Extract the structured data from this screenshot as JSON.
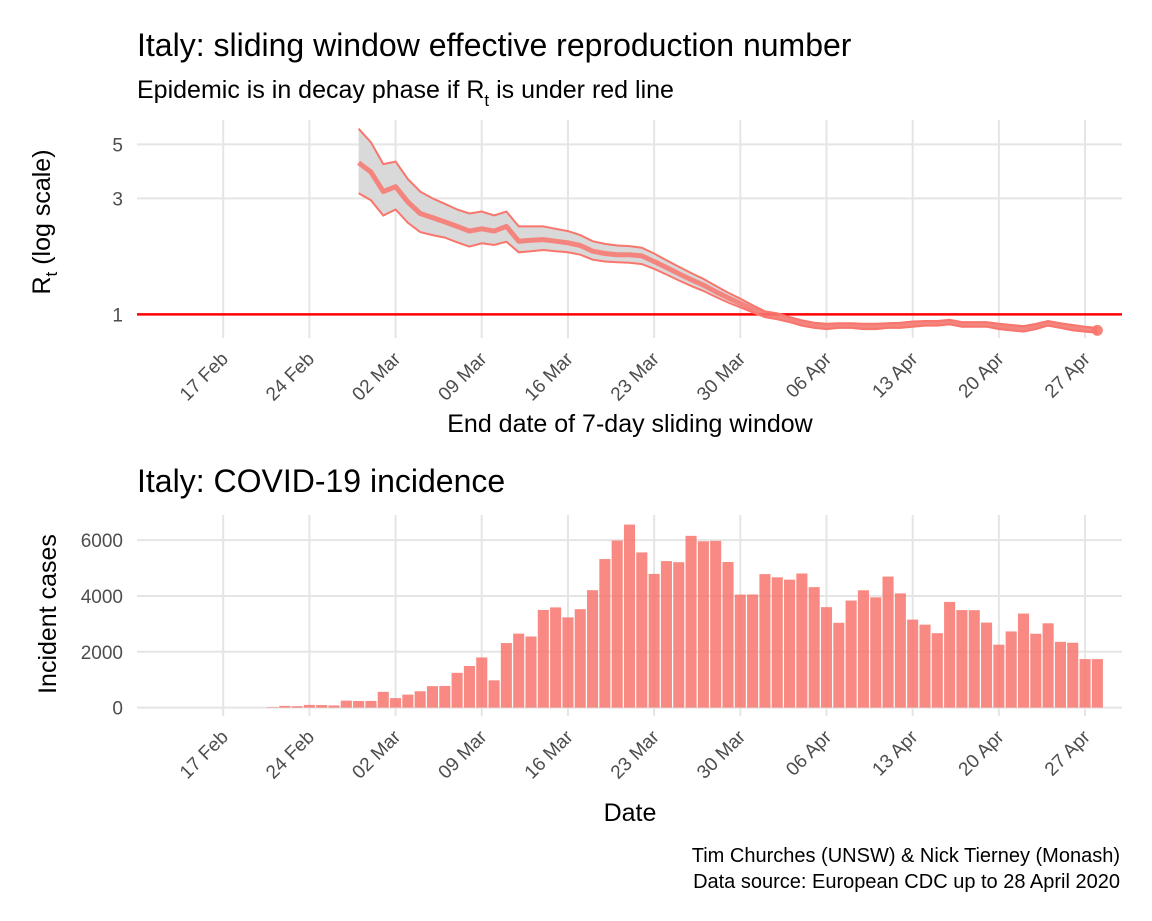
{
  "chart_data": [
    {
      "type": "line",
      "title": "Italy: sliding window effective reproduction number",
      "subtitle": {
        "prefix": "Epidemic is in decay phase if R",
        "subscript": "t",
        "suffix": " is under red line"
      },
      "xlabel": "End date of 7-day sliding window",
      "ylabel": {
        "main": "R",
        "subscript": "t",
        "suffix": " (log scale)"
      },
      "y_scale": "log",
      "y_ticks": [
        1,
        3,
        5
      ],
      "ylim": [
        0.8,
        6.3
      ],
      "x_ticks": [
        {
          "date": "2020-02-17",
          "label": "17 Feb"
        },
        {
          "date": "2020-02-24",
          "label": "24 Feb"
        },
        {
          "date": "2020-03-02",
          "label": "02 Mar"
        },
        {
          "date": "2020-03-09",
          "label": "09 Mar"
        },
        {
          "date": "2020-03-16",
          "label": "16 Mar"
        },
        {
          "date": "2020-03-23",
          "label": "23 Mar"
        },
        {
          "date": "2020-03-30",
          "label": "30 Mar"
        },
        {
          "date": "2020-04-06",
          "label": "06 Apr"
        },
        {
          "date": "2020-04-13",
          "label": "13 Apr"
        },
        {
          "date": "2020-04-20",
          "label": "20 Apr"
        },
        {
          "date": "2020-04-27",
          "label": "27 Apr"
        }
      ],
      "xlim": [
        "2020-02-10",
        "2020-04-30"
      ],
      "reference_line": {
        "y": 1,
        "color": "#ff0000"
      },
      "grid": true,
      "colors": {
        "line": "#f8766d",
        "ribbon": "#d9d9d9"
      },
      "series": [
        {
          "x": [
            "2020-02-28",
            "2020-02-29",
            "2020-03-01",
            "2020-03-02",
            "2020-03-03",
            "2020-03-04",
            "2020-03-05",
            "2020-03-06",
            "2020-03-07",
            "2020-03-08",
            "2020-03-09",
            "2020-03-10",
            "2020-03-11",
            "2020-03-12",
            "2020-03-13",
            "2020-03-14",
            "2020-03-15",
            "2020-03-16",
            "2020-03-17",
            "2020-03-18",
            "2020-03-19",
            "2020-03-20",
            "2020-03-21",
            "2020-03-22",
            "2020-03-23",
            "2020-03-24",
            "2020-03-25",
            "2020-03-26",
            "2020-03-27",
            "2020-03-28",
            "2020-03-29",
            "2020-03-30",
            "2020-03-31",
            "2020-04-01",
            "2020-04-02",
            "2020-04-03",
            "2020-04-04",
            "2020-04-05",
            "2020-04-06",
            "2020-04-07",
            "2020-04-08",
            "2020-04-09",
            "2020-04-10",
            "2020-04-11",
            "2020-04-12",
            "2020-04-13",
            "2020-04-14",
            "2020-04-15",
            "2020-04-16",
            "2020-04-17",
            "2020-04-18",
            "2020-04-19",
            "2020-04-20",
            "2020-04-21",
            "2020-04-22",
            "2020-04-23",
            "2020-04-24",
            "2020-04-25",
            "2020-04-26",
            "2020-04-27",
            "2020-04-28"
          ],
          "values": [
            4.2,
            3.85,
            3.2,
            3.35,
            2.9,
            2.6,
            2.5,
            2.4,
            2.3,
            2.2,
            2.25,
            2.2,
            2.3,
            2.0,
            2.02,
            2.03,
            2.0,
            1.97,
            1.92,
            1.82,
            1.78,
            1.76,
            1.76,
            1.74,
            1.65,
            1.56,
            1.47,
            1.39,
            1.32,
            1.24,
            1.17,
            1.11,
            1.05,
            1.0,
            0.98,
            0.95,
            0.92,
            0.9,
            0.89,
            0.9,
            0.9,
            0.89,
            0.89,
            0.9,
            0.9,
            0.91,
            0.92,
            0.92,
            0.93,
            0.91,
            0.91,
            0.91,
            0.89,
            0.88,
            0.87,
            0.89,
            0.92,
            0.9,
            0.88,
            0.87,
            0.86
          ],
          "lower": [
            3.15,
            2.95,
            2.55,
            2.7,
            2.38,
            2.18,
            2.12,
            2.07,
            1.98,
            1.9,
            1.96,
            1.93,
            1.99,
            1.8,
            1.82,
            1.84,
            1.82,
            1.8,
            1.76,
            1.68,
            1.65,
            1.64,
            1.63,
            1.61,
            1.54,
            1.46,
            1.38,
            1.31,
            1.25,
            1.18,
            1.12,
            1.07,
            1.02,
            0.975,
            0.955,
            0.93,
            0.9,
            0.88,
            0.87,
            0.88,
            0.88,
            0.87,
            0.87,
            0.88,
            0.88,
            0.89,
            0.9,
            0.9,
            0.91,
            0.89,
            0.89,
            0.89,
            0.87,
            0.86,
            0.85,
            0.87,
            0.9,
            0.88,
            0.86,
            0.85,
            0.84
          ],
          "upper": [
            5.8,
            5.1,
            4.15,
            4.25,
            3.6,
            3.2,
            3.0,
            2.85,
            2.7,
            2.6,
            2.65,
            2.55,
            2.65,
            2.3,
            2.3,
            2.3,
            2.25,
            2.2,
            2.12,
            2.0,
            1.95,
            1.92,
            1.91,
            1.88,
            1.78,
            1.67,
            1.57,
            1.48,
            1.4,
            1.31,
            1.23,
            1.16,
            1.09,
            1.03,
            1.01,
            0.975,
            0.945,
            0.925,
            0.915,
            0.92,
            0.92,
            0.915,
            0.915,
            0.92,
            0.925,
            0.935,
            0.94,
            0.94,
            0.95,
            0.93,
            0.93,
            0.93,
            0.915,
            0.905,
            0.895,
            0.915,
            0.94,
            0.92,
            0.905,
            0.89,
            0.88
          ]
        }
      ]
    },
    {
      "type": "bar",
      "title": "Italy: COVID-19 incidence",
      "xlabel": "Date",
      "ylabel": "Incident cases",
      "ylim": [
        -300,
        6900
      ],
      "y_ticks": [
        0,
        2000,
        4000,
        6000
      ],
      "x_ticks": [
        {
          "date": "2020-02-17",
          "label": "17 Feb"
        },
        {
          "date": "2020-02-24",
          "label": "24 Feb"
        },
        {
          "date": "2020-03-02",
          "label": "02 Mar"
        },
        {
          "date": "2020-03-09",
          "label": "09 Mar"
        },
        {
          "date": "2020-03-16",
          "label": "16 Mar"
        },
        {
          "date": "2020-03-23",
          "label": "23 Mar"
        },
        {
          "date": "2020-03-30",
          "label": "30 Mar"
        },
        {
          "date": "2020-04-06",
          "label": "06 Apr"
        },
        {
          "date": "2020-04-13",
          "label": "13 Apr"
        },
        {
          "date": "2020-04-20",
          "label": "20 Apr"
        },
        {
          "date": "2020-04-27",
          "label": "27 Apr"
        }
      ],
      "xlim": [
        "2020-02-10",
        "2020-04-30"
      ],
      "grid": true,
      "colors": {
        "bar": "#f8766d"
      },
      "dates": [
        "2020-02-21",
        "2020-02-22",
        "2020-02-23",
        "2020-02-24",
        "2020-02-25",
        "2020-02-26",
        "2020-02-27",
        "2020-02-28",
        "2020-02-29",
        "2020-03-01",
        "2020-03-02",
        "2020-03-03",
        "2020-03-04",
        "2020-03-05",
        "2020-03-06",
        "2020-03-07",
        "2020-03-08",
        "2020-03-09",
        "2020-03-10",
        "2020-03-11",
        "2020-03-12",
        "2020-03-13",
        "2020-03-14",
        "2020-03-15",
        "2020-03-16",
        "2020-03-17",
        "2020-03-18",
        "2020-03-19",
        "2020-03-20",
        "2020-03-21",
        "2020-03-22",
        "2020-03-23",
        "2020-03-24",
        "2020-03-25",
        "2020-03-26",
        "2020-03-27",
        "2020-03-28",
        "2020-03-29",
        "2020-03-30",
        "2020-03-31",
        "2020-04-01",
        "2020-04-02",
        "2020-04-03",
        "2020-04-04",
        "2020-04-05",
        "2020-04-06",
        "2020-04-07",
        "2020-04-08",
        "2020-04-09",
        "2020-04-10",
        "2020-04-11",
        "2020-04-12",
        "2020-04-13",
        "2020-04-14",
        "2020-04-15",
        "2020-04-16",
        "2020-04-17",
        "2020-04-18",
        "2020-04-19",
        "2020-04-20",
        "2020-04-21",
        "2020-04-22",
        "2020-04-23",
        "2020-04-24",
        "2020-04-25",
        "2020-04-26",
        "2020-04-27",
        "2020-04-28"
      ],
      "values": [
        14,
        62,
        53,
        97,
        93,
        78,
        250,
        238,
        240,
        566,
        342,
        466,
        587,
        769,
        778,
        1247,
        1492,
        1797,
        977,
        2313,
        2651,
        2547,
        3497,
        3590,
        3233,
        3526,
        4207,
        5322,
        5986,
        6557,
        5560,
        4789,
        5249,
        5210,
        6153,
        5959,
        5974,
        5217,
        4050,
        4053,
        4782,
        4668,
        4585,
        4805,
        4316,
        3599,
        3039,
        3836,
        4204,
        3951,
        4694,
        4092,
        3153,
        2972,
        2667,
        3786,
        3493,
        3491,
        3047,
        2256,
        2729,
        3370,
        2646,
        3021,
        2357,
        2324,
        1739,
        1739
      ]
    }
  ],
  "caption": {
    "line1": "Tim Churches (UNSW) & Nick Tierney (Monash)",
    "line2": "Data source: European CDC up to 28 April 2020"
  }
}
